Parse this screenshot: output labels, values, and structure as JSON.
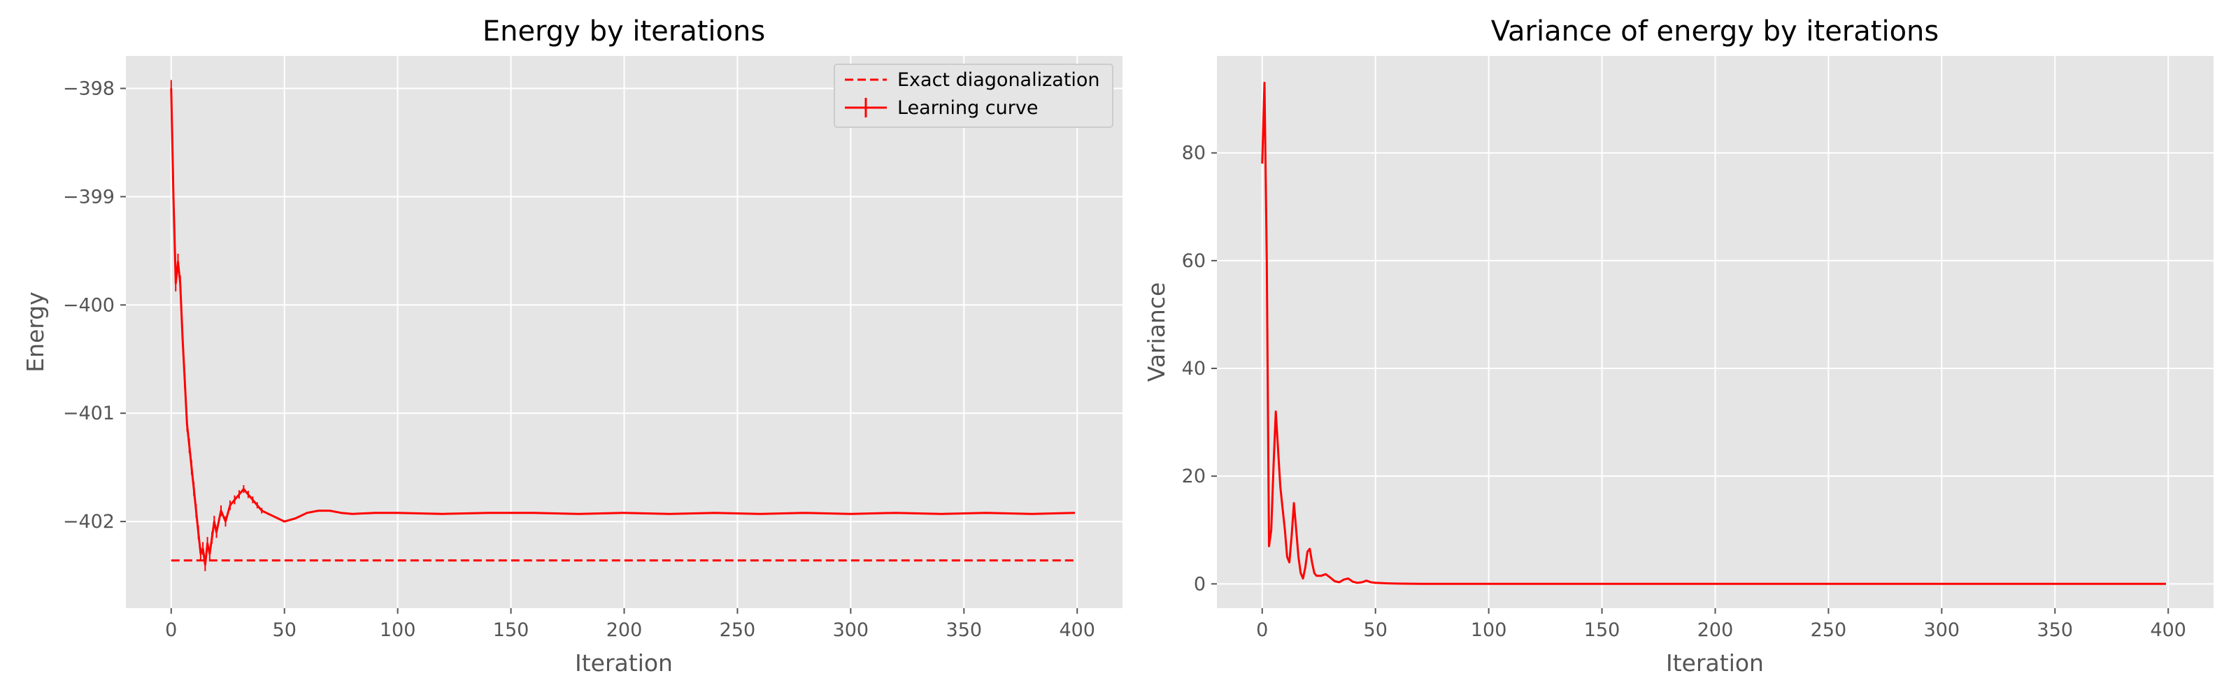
{
  "chart_data": [
    {
      "type": "line",
      "title": "Energy by iterations",
      "xlabel": "Iteration",
      "ylabel": "Energy",
      "xlim": [
        -20,
        420
      ],
      "ylim": [
        -402.8,
        -397.7
      ],
      "xticks": [
        0,
        50,
        100,
        150,
        200,
        250,
        300,
        350,
        400
      ],
      "yticks": [
        -402,
        -401,
        -400,
        -399,
        -398
      ],
      "grid": true,
      "legend_placement": "top-right",
      "series": [
        {
          "name": "Exact diagonalization",
          "style": "dashed",
          "color": "#ff0000",
          "x": [
            0,
            399
          ],
          "y": [
            -402.36,
            -402.36
          ]
        },
        {
          "name": "Learning curve",
          "style": "solid",
          "errorbars": true,
          "color": "#ff0000",
          "x": [
            0,
            1,
            2,
            3,
            4,
            5,
            6,
            7,
            8,
            9,
            10,
            11,
            12,
            13,
            14,
            15,
            16,
            17,
            18,
            19,
            20,
            22,
            24,
            26,
            28,
            30,
            32,
            34,
            36,
            38,
            40,
            45,
            50,
            55,
            60,
            65,
            70,
            75,
            80,
            90,
            100,
            120,
            140,
            160,
            180,
            200,
            220,
            240,
            260,
            280,
            300,
            320,
            340,
            360,
            380,
            399
          ],
          "y": [
            -398.0,
            -399.0,
            -399.8,
            -399.6,
            -399.8,
            -400.3,
            -400.7,
            -401.1,
            -401.3,
            -401.5,
            -401.7,
            -401.9,
            -402.1,
            -402.3,
            -402.25,
            -402.4,
            -402.2,
            -402.3,
            -402.15,
            -402.0,
            -402.1,
            -401.9,
            -402.0,
            -401.85,
            -401.8,
            -401.75,
            -401.7,
            -401.75,
            -401.8,
            -401.85,
            -401.9,
            -401.95,
            -402.0,
            -401.97,
            -401.92,
            -401.9,
            -401.9,
            -401.92,
            -401.93,
            -401.92,
            -401.92,
            -401.93,
            -401.92,
            -401.92,
            -401.93,
            -401.92,
            -401.93,
            -401.92,
            -401.93,
            -401.92,
            -401.93,
            -401.92,
            -401.93,
            -401.92,
            -401.93,
            -401.92
          ]
        }
      ]
    },
    {
      "type": "line",
      "title": "Variance of energy by iterations",
      "xlabel": "Iteration",
      "ylabel": "Variance",
      "xlim": [
        -20,
        420
      ],
      "ylim": [
        -4.5,
        98
      ],
      "xticks": [
        0,
        50,
        100,
        150,
        200,
        250,
        300,
        350,
        400
      ],
      "yticks": [
        0,
        20,
        40,
        60,
        80
      ],
      "grid": true,
      "series": [
        {
          "color": "#ff0000",
          "style": "solid",
          "x": [
            0,
            1,
            2,
            3,
            4,
            5,
            6,
            7,
            8,
            9,
            10,
            11,
            12,
            13,
            14,
            15,
            16,
            17,
            18,
            19,
            20,
            21,
            22,
            23,
            24,
            25,
            26,
            28,
            30,
            32,
            34,
            36,
            38,
            40,
            42,
            44,
            46,
            48,
            50,
            55,
            60,
            70,
            80,
            100,
            150,
            200,
            250,
            300,
            350,
            399
          ],
          "y": [
            78,
            93,
            60,
            7,
            10,
            22,
            32,
            25,
            18,
            14,
            10,
            5,
            4,
            9,
            15,
            10,
            5,
            2,
            1,
            3,
            6,
            6.5,
            4,
            2,
            1.5,
            1.5,
            1.5,
            1.8,
            1.2,
            0.5,
            0.3,
            0.8,
            1.0,
            0.4,
            0.2,
            0.3,
            0.6,
            0.3,
            0.2,
            0.1,
            0.05,
            0.02,
            0.01,
            0.0,
            0.0,
            0.0,
            0.0,
            0.0,
            0.0,
            0.0
          ]
        }
      ]
    }
  ]
}
